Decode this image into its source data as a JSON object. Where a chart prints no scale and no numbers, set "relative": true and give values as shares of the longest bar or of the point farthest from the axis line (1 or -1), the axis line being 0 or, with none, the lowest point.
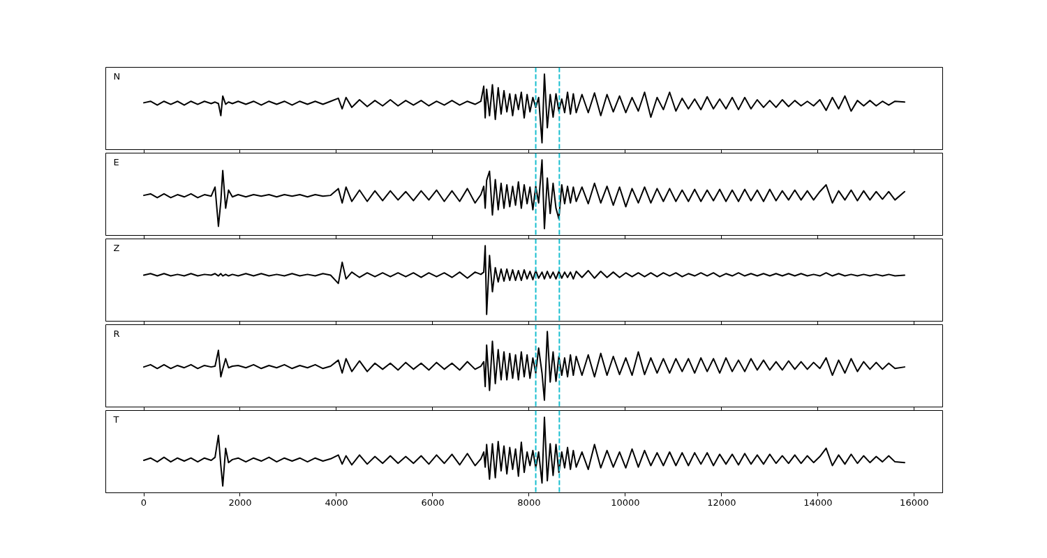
{
  "chart_data": [
    {
      "type": "line",
      "title": "N",
      "relative": true,
      "xlim": [
        -790,
        16590
      ],
      "xticks": [
        0,
        2000,
        4000,
        6000,
        8000,
        10000,
        12000,
        14000,
        16000
      ],
      "tick_labels": false,
      "ref_lines": [
        {
          "axis": "x",
          "value": 8140,
          "color": "#17becf",
          "line_style": "dashed"
        },
        {
          "axis": "x",
          "value": 8630,
          "color": "#17becf",
          "line_style": "dashed"
        }
      ],
      "x": [
        0,
        140,
        280,
        420,
        560,
        700,
        840,
        980,
        1120,
        1260,
        1400,
        1480,
        1550,
        1600,
        1640,
        1700,
        1760,
        1840,
        1960,
        2120,
        2280,
        2440,
        2600,
        2760,
        2920,
        3080,
        3240,
        3400,
        3560,
        3720,
        3880,
        4040,
        4120,
        4200,
        4320,
        4480,
        4640,
        4800,
        4960,
        5120,
        5280,
        5440,
        5600,
        5760,
        5920,
        6080,
        6240,
        6400,
        6560,
        6720,
        6880,
        7000,
        7060,
        7090,
        7120,
        7180,
        7240,
        7300,
        7360,
        7420,
        7480,
        7540,
        7600,
        7660,
        7720,
        7780,
        7840,
        7900,
        7960,
        8020,
        8080,
        8140,
        8200,
        8270,
        8320,
        8380,
        8440,
        8500,
        8560,
        8620,
        8680,
        8740,
        8800,
        8860,
        8920,
        8980,
        9100,
        9230,
        9360,
        9490,
        9620,
        9750,
        9880,
        10010,
        10140,
        10270,
        10400,
        10530,
        10660,
        10790,
        10920,
        11050,
        11180,
        11310,
        11440,
        11570,
        11700,
        11830,
        11960,
        12090,
        12220,
        12350,
        12480,
        12610,
        12740,
        12870,
        13000,
        13130,
        13260,
        13390,
        13520,
        13650,
        13780,
        13910,
        14040,
        14170,
        14300,
        14430,
        14560,
        14690,
        14820,
        14950,
        15080,
        15210,
        15340,
        15470,
        15600,
        15800
      ],
      "series": [
        {
          "color": "#000000",
          "values": [
            0.62,
            0.64,
            0.59,
            0.64,
            0.6,
            0.64,
            0.59,
            0.64,
            0.6,
            0.64,
            0.61,
            0.63,
            0.61,
            0.45,
            0.71,
            0.6,
            0.63,
            0.61,
            0.64,
            0.6,
            0.64,
            0.59,
            0.64,
            0.6,
            0.64,
            0.59,
            0.64,
            0.6,
            0.64,
            0.6,
            0.64,
            0.68,
            0.54,
            0.69,
            0.56,
            0.66,
            0.57,
            0.65,
            0.58,
            0.66,
            0.58,
            0.65,
            0.59,
            0.65,
            0.58,
            0.64,
            0.59,
            0.65,
            0.59,
            0.64,
            0.6,
            0.64,
            0.84,
            0.42,
            0.8,
            0.45,
            0.86,
            0.4,
            0.82,
            0.47,
            0.78,
            0.5,
            0.74,
            0.45,
            0.73,
            0.53,
            0.76,
            0.42,
            0.73,
            0.5,
            0.69,
            0.56,
            0.69,
            0.09,
            1.0,
            0.29,
            0.73,
            0.43,
            0.74,
            0.51,
            0.67,
            0.49,
            0.76,
            0.47,
            0.74,
            0.49,
            0.73,
            0.49,
            0.75,
            0.45,
            0.73,
            0.5,
            0.71,
            0.49,
            0.69,
            0.51,
            0.76,
            0.43,
            0.69,
            0.53,
            0.76,
            0.51,
            0.68,
            0.54,
            0.67,
            0.53,
            0.7,
            0.54,
            0.67,
            0.54,
            0.69,
            0.53,
            0.69,
            0.54,
            0.66,
            0.56,
            0.65,
            0.56,
            0.66,
            0.57,
            0.65,
            0.58,
            0.64,
            0.58,
            0.66,
            0.52,
            0.69,
            0.54,
            0.71,
            0.51,
            0.65,
            0.58,
            0.65,
            0.58,
            0.64,
            0.59,
            0.64,
            0.63
          ]
        }
      ]
    },
    {
      "type": "line",
      "title": "E",
      "relative": true,
      "xlim": [
        -790,
        16590
      ],
      "xticks": [
        0,
        2000,
        4000,
        6000,
        8000,
        10000,
        12000,
        14000,
        16000
      ],
      "tick_labels": false,
      "ref_lines": [
        {
          "axis": "x",
          "value": 8140,
          "color": "#17becf",
          "line_style": "dashed"
        },
        {
          "axis": "x",
          "value": 8630,
          "color": "#17becf",
          "line_style": "dashed"
        }
      ],
      "x": [
        0,
        140,
        280,
        420,
        560,
        700,
        840,
        980,
        1120,
        1260,
        1400,
        1480,
        1550,
        1600,
        1640,
        1700,
        1760,
        1840,
        1960,
        2120,
        2280,
        2440,
        2600,
        2760,
        2920,
        3080,
        3240,
        3400,
        3560,
        3720,
        3880,
        4040,
        4120,
        4200,
        4320,
        4480,
        4640,
        4800,
        4960,
        5120,
        5280,
        5440,
        5600,
        5760,
        5920,
        6080,
        6240,
        6400,
        6560,
        6720,
        6880,
        7000,
        7060,
        7090,
        7120,
        7180,
        7240,
        7300,
        7360,
        7420,
        7480,
        7540,
        7600,
        7660,
        7720,
        7780,
        7840,
        7900,
        7960,
        8020,
        8080,
        8140,
        8200,
        8270,
        8320,
        8380,
        8440,
        8500,
        8560,
        8620,
        8680,
        8740,
        8800,
        8860,
        8920,
        8980,
        9100,
        9230,
        9360,
        9490,
        9620,
        9750,
        9880,
        10010,
        10140,
        10270,
        10400,
        10530,
        10660,
        10790,
        10920,
        11050,
        11180,
        11310,
        11440,
        11570,
        11700,
        11830,
        11960,
        12090,
        12220,
        12350,
        12480,
        12610,
        12740,
        12870,
        13000,
        13130,
        13260,
        13390,
        13520,
        13650,
        13780,
        13910,
        14040,
        14170,
        14300,
        14430,
        14560,
        14690,
        14820,
        14950,
        15080,
        15210,
        15340,
        15470,
        15600,
        15800
      ],
      "series": [
        {
          "color": "#000000",
          "values": [
            0.53,
            0.55,
            0.5,
            0.55,
            0.5,
            0.54,
            0.51,
            0.55,
            0.5,
            0.54,
            0.52,
            0.64,
            0.12,
            0.45,
            0.86,
            0.36,
            0.6,
            0.51,
            0.54,
            0.51,
            0.54,
            0.52,
            0.54,
            0.51,
            0.54,
            0.52,
            0.54,
            0.51,
            0.54,
            0.52,
            0.53,
            0.62,
            0.43,
            0.64,
            0.45,
            0.6,
            0.45,
            0.59,
            0.46,
            0.59,
            0.47,
            0.58,
            0.46,
            0.59,
            0.47,
            0.6,
            0.45,
            0.59,
            0.45,
            0.62,
            0.43,
            0.54,
            0.65,
            0.36,
            0.73,
            0.85,
            0.27,
            0.74,
            0.34,
            0.69,
            0.36,
            0.67,
            0.38,
            0.65,
            0.4,
            0.71,
            0.36,
            0.67,
            0.42,
            0.64,
            0.34,
            0.65,
            0.43,
            1.0,
            0.09,
            0.76,
            0.29,
            0.69,
            0.36,
            0.22,
            0.67,
            0.42,
            0.65,
            0.43,
            0.64,
            0.45,
            0.64,
            0.42,
            0.69,
            0.43,
            0.65,
            0.4,
            0.64,
            0.38,
            0.62,
            0.43,
            0.64,
            0.43,
            0.62,
            0.45,
            0.62,
            0.45,
            0.6,
            0.45,
            0.61,
            0.45,
            0.6,
            0.46,
            0.61,
            0.45,
            0.6,
            0.45,
            0.61,
            0.46,
            0.6,
            0.45,
            0.61,
            0.46,
            0.59,
            0.47,
            0.6,
            0.47,
            0.59,
            0.47,
            0.58,
            0.67,
            0.43,
            0.59,
            0.47,
            0.6,
            0.46,
            0.59,
            0.47,
            0.58,
            0.48,
            0.58,
            0.47,
            0.58
          ]
        }
      ]
    },
    {
      "type": "line",
      "title": "Z",
      "relative": true,
      "xlim": [
        -790,
        16590
      ],
      "xticks": [
        0,
        2000,
        4000,
        6000,
        8000,
        10000,
        12000,
        14000,
        16000
      ],
      "tick_labels": false,
      "ref_lines": [
        {
          "axis": "x",
          "value": 8140,
          "color": "#17becf",
          "line_style": "dashed"
        },
        {
          "axis": "x",
          "value": 8630,
          "color": "#17becf",
          "line_style": "dashed"
        }
      ],
      "x": [
        0,
        140,
        280,
        420,
        560,
        700,
        840,
        980,
        1120,
        1260,
        1400,
        1480,
        1550,
        1600,
        1640,
        1700,
        1760,
        1840,
        1960,
        2120,
        2280,
        2440,
        2600,
        2760,
        2920,
        3080,
        3240,
        3400,
        3560,
        3720,
        3880,
        4040,
        4120,
        4200,
        4320,
        4480,
        4640,
        4800,
        4960,
        5120,
        5280,
        5440,
        5600,
        5760,
        5920,
        6080,
        6240,
        6400,
        6560,
        6720,
        6880,
        7000,
        7060,
        7090,
        7120,
        7180,
        7240,
        7300,
        7360,
        7420,
        7480,
        7540,
        7600,
        7660,
        7720,
        7780,
        7840,
        7900,
        7960,
        8020,
        8080,
        8140,
        8200,
        8270,
        8320,
        8380,
        8440,
        8500,
        8560,
        8620,
        8680,
        8740,
        8800,
        8860,
        8920,
        8980,
        9100,
        9230,
        9360,
        9490,
        9620,
        9750,
        9880,
        10010,
        10140,
        10270,
        10400,
        10530,
        10660,
        10790,
        10920,
        11050,
        11180,
        11310,
        11440,
        11570,
        11700,
        11830,
        11960,
        12090,
        12220,
        12350,
        12480,
        12610,
        12740,
        12870,
        13000,
        13130,
        13260,
        13390,
        13520,
        13650,
        13780,
        13910,
        14040,
        14170,
        14300,
        14430,
        14560,
        14690,
        14820,
        14950,
        15080,
        15210,
        15340,
        15470,
        15600,
        15800
      ],
      "series": [
        {
          "color": "#000000",
          "values": [
            0.61,
            0.63,
            0.6,
            0.63,
            0.6,
            0.62,
            0.6,
            0.63,
            0.6,
            0.62,
            0.61,
            0.63,
            0.6,
            0.63,
            0.6,
            0.62,
            0.6,
            0.62,
            0.6,
            0.63,
            0.6,
            0.63,
            0.6,
            0.62,
            0.6,
            0.63,
            0.6,
            0.62,
            0.6,
            0.63,
            0.61,
            0.5,
            0.78,
            0.56,
            0.65,
            0.58,
            0.64,
            0.59,
            0.64,
            0.59,
            0.64,
            0.59,
            0.64,
            0.58,
            0.64,
            0.59,
            0.64,
            0.58,
            0.65,
            0.57,
            0.65,
            0.62,
            0.65,
            1.0,
            0.09,
            0.87,
            0.39,
            0.71,
            0.52,
            0.69,
            0.53,
            0.69,
            0.54,
            0.68,
            0.54,
            0.67,
            0.54,
            0.68,
            0.56,
            0.66,
            0.55,
            0.67,
            0.57,
            0.65,
            0.56,
            0.66,
            0.57,
            0.65,
            0.56,
            0.66,
            0.57,
            0.65,
            0.58,
            0.65,
            0.56,
            0.66,
            0.58,
            0.67,
            0.57,
            0.66,
            0.58,
            0.65,
            0.58,
            0.64,
            0.59,
            0.64,
            0.59,
            0.64,
            0.59,
            0.64,
            0.6,
            0.64,
            0.59,
            0.63,
            0.6,
            0.64,
            0.6,
            0.64,
            0.59,
            0.63,
            0.6,
            0.64,
            0.6,
            0.63,
            0.6,
            0.63,
            0.6,
            0.63,
            0.6,
            0.63,
            0.6,
            0.63,
            0.6,
            0.62,
            0.6,
            0.64,
            0.6,
            0.63,
            0.6,
            0.62,
            0.6,
            0.62,
            0.6,
            0.62,
            0.6,
            0.62,
            0.6,
            0.61
          ]
        }
      ]
    },
    {
      "type": "line",
      "title": "R",
      "relative": true,
      "xlim": [
        -790,
        16590
      ],
      "xticks": [
        0,
        2000,
        4000,
        6000,
        8000,
        10000,
        12000,
        14000,
        16000
      ],
      "tick_labels": false,
      "ref_lines": [
        {
          "axis": "x",
          "value": 8140,
          "color": "#17becf",
          "line_style": "dashed"
        },
        {
          "axis": "x",
          "value": 8630,
          "color": "#17becf",
          "line_style": "dashed"
        }
      ],
      "x": [
        0,
        140,
        280,
        420,
        560,
        700,
        840,
        980,
        1120,
        1260,
        1400,
        1480,
        1550,
        1600,
        1640,
        1700,
        1760,
        1840,
        1960,
        2120,
        2280,
        2440,
        2600,
        2760,
        2920,
        3080,
        3240,
        3400,
        3560,
        3720,
        3880,
        4040,
        4120,
        4200,
        4320,
        4480,
        4640,
        4800,
        4960,
        5120,
        5280,
        5440,
        5600,
        5760,
        5920,
        6080,
        6240,
        6400,
        6560,
        6720,
        6880,
        7000,
        7060,
        7090,
        7120,
        7180,
        7240,
        7300,
        7360,
        7420,
        7480,
        7540,
        7600,
        7660,
        7720,
        7780,
        7840,
        7900,
        7960,
        8020,
        8080,
        8140,
        8200,
        8270,
        8320,
        8380,
        8440,
        8500,
        8560,
        8620,
        8680,
        8740,
        8800,
        8860,
        8920,
        8980,
        9100,
        9230,
        9360,
        9490,
        9620,
        9750,
        9880,
        10010,
        10140,
        10270,
        10400,
        10530,
        10660,
        10790,
        10920,
        11050,
        11180,
        11310,
        11440,
        11570,
        11700,
        11830,
        11960,
        12090,
        12220,
        12350,
        12480,
        12610,
        12740,
        12870,
        13000,
        13130,
        13260,
        13390,
        13520,
        13650,
        13780,
        13910,
        14040,
        14170,
        14300,
        14430,
        14560,
        14690,
        14820,
        14950,
        15080,
        15210,
        15340,
        15470,
        15600,
        15800
      ],
      "series": [
        {
          "color": "#000000",
          "values": [
            0.53,
            0.56,
            0.51,
            0.56,
            0.51,
            0.55,
            0.52,
            0.56,
            0.51,
            0.55,
            0.53,
            0.54,
            0.75,
            0.4,
            0.5,
            0.64,
            0.52,
            0.54,
            0.55,
            0.52,
            0.56,
            0.51,
            0.55,
            0.52,
            0.56,
            0.51,
            0.55,
            0.52,
            0.56,
            0.51,
            0.54,
            0.62,
            0.45,
            0.64,
            0.47,
            0.61,
            0.47,
            0.58,
            0.5,
            0.58,
            0.49,
            0.59,
            0.5,
            0.58,
            0.49,
            0.59,
            0.5,
            0.58,
            0.49,
            0.6,
            0.5,
            0.54,
            0.6,
            0.27,
            0.82,
            0.22,
            0.87,
            0.31,
            0.76,
            0.36,
            0.73,
            0.36,
            0.71,
            0.38,
            0.69,
            0.36,
            0.73,
            0.4,
            0.69,
            0.38,
            0.65,
            0.45,
            0.78,
            0.45,
            0.09,
            1.0,
            0.33,
            0.73,
            0.34,
            0.67,
            0.42,
            0.65,
            0.4,
            0.69,
            0.42,
            0.67,
            0.42,
            0.69,
            0.4,
            0.71,
            0.42,
            0.67,
            0.43,
            0.65,
            0.42,
            0.73,
            0.43,
            0.65,
            0.45,
            0.64,
            0.45,
            0.64,
            0.47,
            0.64,
            0.45,
            0.65,
            0.47,
            0.64,
            0.45,
            0.65,
            0.47,
            0.62,
            0.47,
            0.64,
            0.49,
            0.62,
            0.49,
            0.6,
            0.49,
            0.61,
            0.5,
            0.6,
            0.5,
            0.59,
            0.51,
            0.65,
            0.42,
            0.62,
            0.45,
            0.64,
            0.47,
            0.6,
            0.5,
            0.59,
            0.5,
            0.58,
            0.51,
            0.53
          ]
        }
      ]
    },
    {
      "type": "line",
      "title": "T",
      "relative": true,
      "xlim": [
        -790,
        16590
      ],
      "xticks": [
        0,
        2000,
        4000,
        6000,
        8000,
        10000,
        12000,
        14000,
        16000
      ],
      "tick_labels": "x",
      "ref_lines": [
        {
          "axis": "x",
          "value": 8140,
          "color": "#17becf",
          "line_style": "dashed"
        },
        {
          "axis": "x",
          "value": 8630,
          "color": "#17becf",
          "line_style": "dashed"
        }
      ],
      "x": [
        0,
        140,
        280,
        420,
        560,
        700,
        840,
        980,
        1120,
        1260,
        1400,
        1480,
        1550,
        1600,
        1640,
        1700,
        1760,
        1840,
        1960,
        2120,
        2280,
        2440,
        2600,
        2760,
        2920,
        3080,
        3240,
        3400,
        3560,
        3720,
        3880,
        4040,
        4120,
        4200,
        4320,
        4480,
        4640,
        4800,
        4960,
        5120,
        5280,
        5440,
        5600,
        5760,
        5920,
        6080,
        6240,
        6400,
        6560,
        6720,
        6880,
        7000,
        7060,
        7090,
        7120,
        7180,
        7240,
        7300,
        7360,
        7420,
        7480,
        7540,
        7600,
        7660,
        7720,
        7780,
        7840,
        7900,
        7960,
        8020,
        8080,
        8140,
        8200,
        8270,
        8320,
        8380,
        8440,
        8500,
        8560,
        8620,
        8680,
        8740,
        8800,
        8860,
        8920,
        8980,
        9100,
        9230,
        9360,
        9490,
        9620,
        9750,
        9880,
        10010,
        10140,
        10270,
        10400,
        10530,
        10660,
        10790,
        10920,
        11050,
        11180,
        11310,
        11440,
        11570,
        11700,
        11830,
        11960,
        12090,
        12220,
        12350,
        12480,
        12610,
        12740,
        12870,
        13000,
        13130,
        13260,
        13390,
        13520,
        13650,
        13780,
        13910,
        14040,
        14170,
        14300,
        14430,
        14560,
        14690,
        14820,
        14950,
        15080,
        15210,
        15340,
        15470,
        15600,
        15800
      ],
      "series": [
        {
          "color": "#000000",
          "values": [
            0.43,
            0.46,
            0.41,
            0.47,
            0.41,
            0.46,
            0.42,
            0.46,
            0.41,
            0.46,
            0.43,
            0.47,
            0.76,
            0.36,
            0.09,
            0.59,
            0.4,
            0.44,
            0.46,
            0.41,
            0.46,
            0.42,
            0.47,
            0.41,
            0.46,
            0.42,
            0.46,
            0.41,
            0.46,
            0.42,
            0.45,
            0.5,
            0.38,
            0.49,
            0.37,
            0.5,
            0.38,
            0.48,
            0.39,
            0.49,
            0.39,
            0.48,
            0.39,
            0.49,
            0.38,
            0.5,
            0.39,
            0.51,
            0.37,
            0.52,
            0.36,
            0.45,
            0.54,
            0.34,
            0.64,
            0.18,
            0.65,
            0.2,
            0.68,
            0.29,
            0.62,
            0.25,
            0.6,
            0.31,
            0.58,
            0.22,
            0.67,
            0.27,
            0.54,
            0.36,
            0.56,
            0.33,
            0.54,
            0.13,
            1.0,
            0.16,
            0.65,
            0.23,
            0.64,
            0.27,
            0.54,
            0.33,
            0.6,
            0.31,
            0.56,
            0.34,
            0.54,
            0.31,
            0.64,
            0.33,
            0.56,
            0.34,
            0.54,
            0.33,
            0.58,
            0.34,
            0.56,
            0.36,
            0.53,
            0.36,
            0.54,
            0.36,
            0.53,
            0.36,
            0.53,
            0.38,
            0.53,
            0.36,
            0.51,
            0.38,
            0.51,
            0.37,
            0.52,
            0.38,
            0.5,
            0.38,
            0.51,
            0.39,
            0.49,
            0.39,
            0.5,
            0.39,
            0.49,
            0.4,
            0.48,
            0.59,
            0.36,
            0.5,
            0.38,
            0.51,
            0.39,
            0.49,
            0.4,
            0.48,
            0.41,
            0.49,
            0.41,
            0.4
          ]
        }
      ]
    }
  ]
}
